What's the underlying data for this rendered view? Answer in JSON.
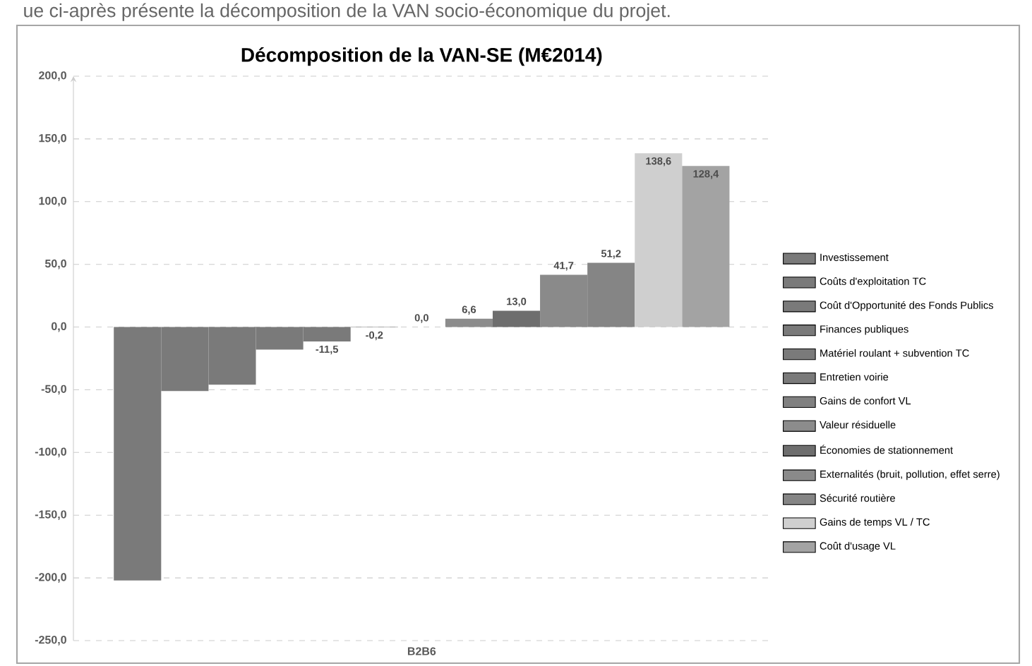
{
  "chart_data": {
    "type": "bar",
    "title": "Décomposition de la VAN-SE (M€2014)",
    "annotations": [
      "ue ci-après présente la décomposition de la VAN socio-économique du projet."
    ],
    "categories": [
      "B2B6"
    ],
    "series": [
      {
        "name": "Investissement",
        "color": "#7a7a7a",
        "values": [
          -202
        ]
      },
      {
        "name": "Coûts d'exploitation TC",
        "color": "#7a7a7a",
        "values": [
          -51
        ]
      },
      {
        "name": "Coût d'Opportunité des Fonds Publics",
        "color": "#7a7a7a",
        "values": [
          -46
        ]
      },
      {
        "name": "Finances publiques",
        "color": "#7a7a7a",
        "values": [
          -18
        ]
      },
      {
        "name": "Matériel roulant + subvention TC",
        "color": "#7a7a7a",
        "values": [
          -11.5
        ],
        "value_labels": [
          "-11,5"
        ]
      },
      {
        "name": "Entretien voirie",
        "color": "#7a7a7a",
        "values": [
          -0.2
        ],
        "value_labels": [
          "-0,2"
        ]
      },
      {
        "name": "Gains de confort VL",
        "color": "#808080",
        "values": [
          0.0
        ],
        "value_labels": [
          "0,0"
        ]
      },
      {
        "name": "Valeur résiduelle",
        "color": "#8c8c8c",
        "values": [
          6.6
        ],
        "value_labels": [
          "6,6"
        ]
      },
      {
        "name": "Économies de stationnement",
        "color": "#6e6e6e",
        "values": [
          13.0
        ],
        "value_labels": [
          "13,0"
        ]
      },
      {
        "name": "Externalités (bruit, pollution, effet serre)",
        "color": "#8a8a8a",
        "values": [
          41.7
        ],
        "value_labels": [
          "41,7"
        ]
      },
      {
        "name": "Sécurité routière",
        "color": "#858585",
        "values": [
          51.2
        ],
        "value_labels": [
          "51,2"
        ]
      },
      {
        "name": "Gains de temps VL / TC",
        "color": "#cfcfcf",
        "values": [
          138.6
        ],
        "value_labels": [
          "138,6"
        ]
      },
      {
        "name": "Coût d'usage VL",
        "color": "#a3a3a3",
        "values": [
          128.4
        ],
        "value_labels": [
          "128,4"
        ]
      }
    ],
    "ylim": [
      -250,
      200
    ],
    "yticks": [
      {
        "value": -250,
        "label": "-250,0"
      },
      {
        "value": -200,
        "label": "-200,0"
      },
      {
        "value": -150,
        "label": "-150,0"
      },
      {
        "value": -100,
        "label": "-100,0"
      },
      {
        "value": -50,
        "label": "-50,0"
      },
      {
        "value": 0,
        "label": "0,0"
      },
      {
        "value": 50,
        "label": "50,0"
      },
      {
        "value": 100,
        "label": "100,0"
      },
      {
        "value": 150,
        "label": "150,0"
      },
      {
        "value": 200,
        "label": "200,0"
      }
    ],
    "grid": "y",
    "legend": "right"
  }
}
